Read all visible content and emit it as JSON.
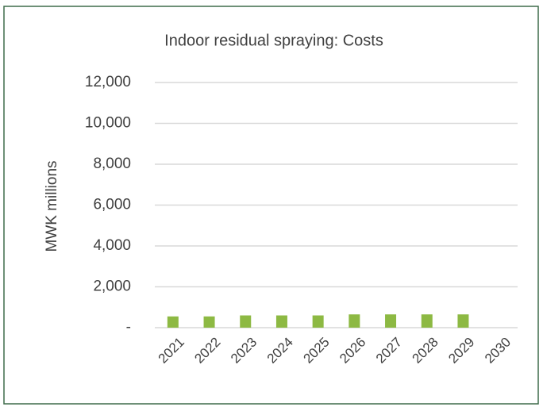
{
  "chart_data": {
    "type": "bar",
    "title": "Indoor residual spraying: Costs",
    "y_label": "MWK millions",
    "categories": [
      "2021",
      "2022",
      "2023",
      "2024",
      "2025",
      "2026",
      "2027",
      "2028",
      "2029",
      "2030"
    ],
    "values": [
      550,
      550,
      600,
      600,
      600,
      650,
      650,
      650,
      650,
      null
    ],
    "color": "#8db943",
    "ylim": [
      0,
      12000
    ],
    "yticks": [
      {
        "value": 0,
        "label": "-"
      },
      {
        "value": 2000,
        "label": "2,000"
      },
      {
        "value": 4000,
        "label": "4,000"
      },
      {
        "value": 6000,
        "label": "6,000"
      },
      {
        "value": 8000,
        "label": "8,000"
      },
      {
        "value": 10000,
        "label": "10,000"
      },
      {
        "value": 12000,
        "label": "12,000"
      }
    ],
    "grid": true
  }
}
